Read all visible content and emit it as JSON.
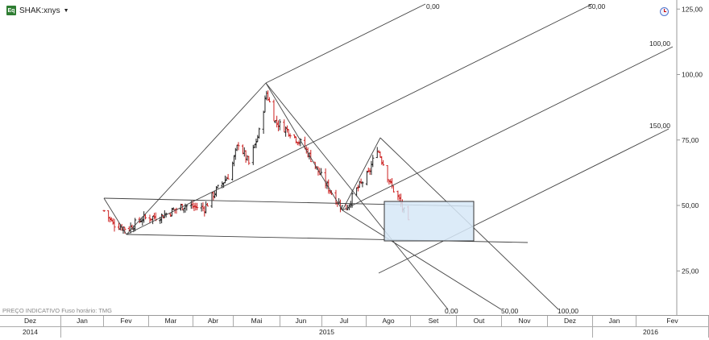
{
  "header": {
    "symbol": "SHAK:xnys",
    "symbol_badge": "Eq",
    "dropdown_icon": "chevron-down-icon",
    "timezone_icon": "clock-icon"
  },
  "footer": {
    "note": "PREÇO INDICATIVO   Fuso horário: TMG"
  },
  "time_axis": {
    "months": [
      "Dez",
      "Jan",
      "Fev",
      "Mar",
      "Abr",
      "Mai",
      "Jun",
      "Jul",
      "Ago",
      "Set",
      "Out",
      "Nov",
      "Dez",
      "Jan",
      "Fev"
    ],
    "years": [
      "2014",
      "2015",
      "2016"
    ]
  },
  "colors": {
    "up_bar": "#222222",
    "down_bar": "#cc2222",
    "box_fill": "#d6e8f7",
    "box_stroke": "#333333",
    "lines": "#444444"
  },
  "chart_data": {
    "type": "bar",
    "subtype": "ohlc-price-chart-with-gann-fans",
    "symbol": "SHAK:xnys",
    "y_axis": {
      "ticks": [
        25,
        50,
        75,
        100,
        125
      ],
      "tick_labels": [
        "25,00",
        "50,00",
        "75,00",
        "100,00",
        "125,00"
      ],
      "side": "right"
    },
    "x_axis": {
      "months": [
        "Dez",
        "Jan",
        "Fev",
        "Mar",
        "Abr",
        "Mai",
        "Jun",
        "Jul",
        "Ago",
        "Set",
        "Out",
        "Nov",
        "Dez",
        "Jan",
        "Fev"
      ]
    },
    "fan_labels": [
      "0,00",
      "50,00",
      "100,00",
      "150,00",
      "0,00",
      "50,00",
      "100,00"
    ],
    "price_path": [
      [
        "2015-01-30",
        48
      ],
      [
        "2015-02-05",
        43
      ],
      [
        "2015-02-15",
        41
      ],
      [
        "2015-02-25",
        45
      ],
      [
        "2015-03-10",
        46
      ],
      [
        "2015-03-25",
        50
      ],
      [
        "2015-04-08",
        49
      ],
      [
        "2015-04-15",
        55
      ],
      [
        "2015-04-25",
        62
      ],
      [
        "2015-05-01",
        74
      ],
      [
        "2015-05-08",
        66
      ],
      [
        "2015-05-15",
        78
      ],
      [
        "2015-05-20",
        93
      ],
      [
        "2015-05-26",
        82
      ],
      [
        "2015-06-05",
        78
      ],
      [
        "2015-06-15",
        72
      ],
      [
        "2015-06-25",
        62
      ],
      [
        "2015-07-05",
        53
      ],
      [
        "2015-07-12",
        48
      ],
      [
        "2015-07-20",
        56
      ],
      [
        "2015-07-28",
        62
      ],
      [
        "2015-08-03",
        72
      ],
      [
        "2015-08-07",
        66
      ],
      [
        "2015-08-12",
        58
      ],
      [
        "2015-08-18",
        52
      ],
      [
        "2015-08-24",
        43
      ]
    ]
  }
}
